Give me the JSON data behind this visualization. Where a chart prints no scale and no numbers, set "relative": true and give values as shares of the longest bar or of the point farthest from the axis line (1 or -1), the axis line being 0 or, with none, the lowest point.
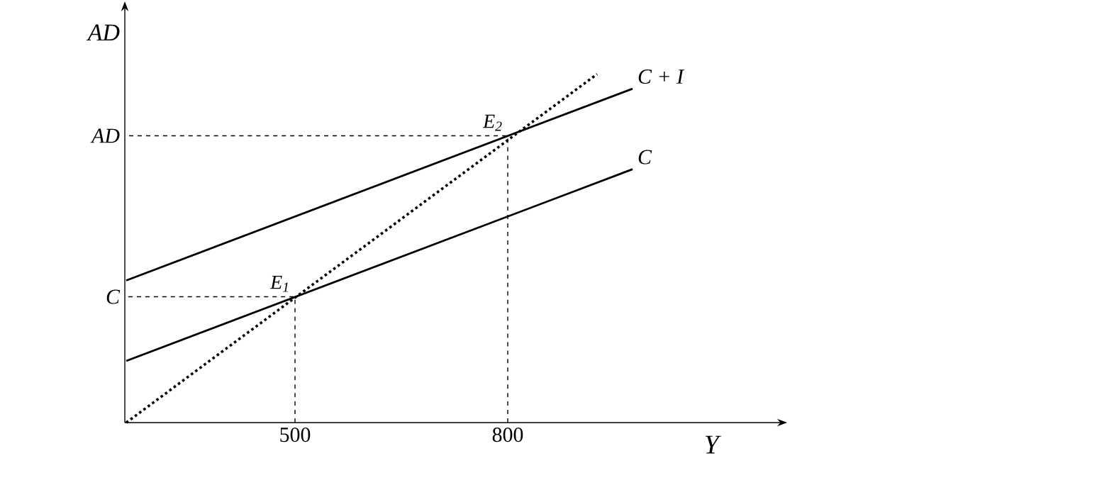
{
  "chart_data": {
    "type": "line",
    "xlabel": "Y",
    "ylabel": "AD",
    "relative": true,
    "xlim": [
      260,
      1180
    ],
    "xticks": [
      500,
      800
    ],
    "series": [
      {
        "name": "C + I",
        "color": "#000000",
        "x": [
          262,
          976
        ],
        "values": [
          0.408,
          0.958
        ],
        "line_style": "solid"
      },
      {
        "name": "C",
        "color": "#000000",
        "x": [
          262,
          976
        ],
        "values": [
          0.177,
          0.727
        ],
        "line_style": "solid"
      },
      {
        "color": "#000000",
        "x": [
          262,
          926
        ],
        "values": [
          0,
          1
        ],
        "line_style": "dotted"
      }
    ],
    "annotations": [
      {
        "text": "E$_{1}$",
        "x": 500,
        "y": 0.361
      },
      {
        "text": "E$_{2}$",
        "x": 800,
        "y": 0.823
      },
      "C",
      "AD"
    ],
    "grid": false,
    "legend": false,
    "marker": "none"
  }
}
